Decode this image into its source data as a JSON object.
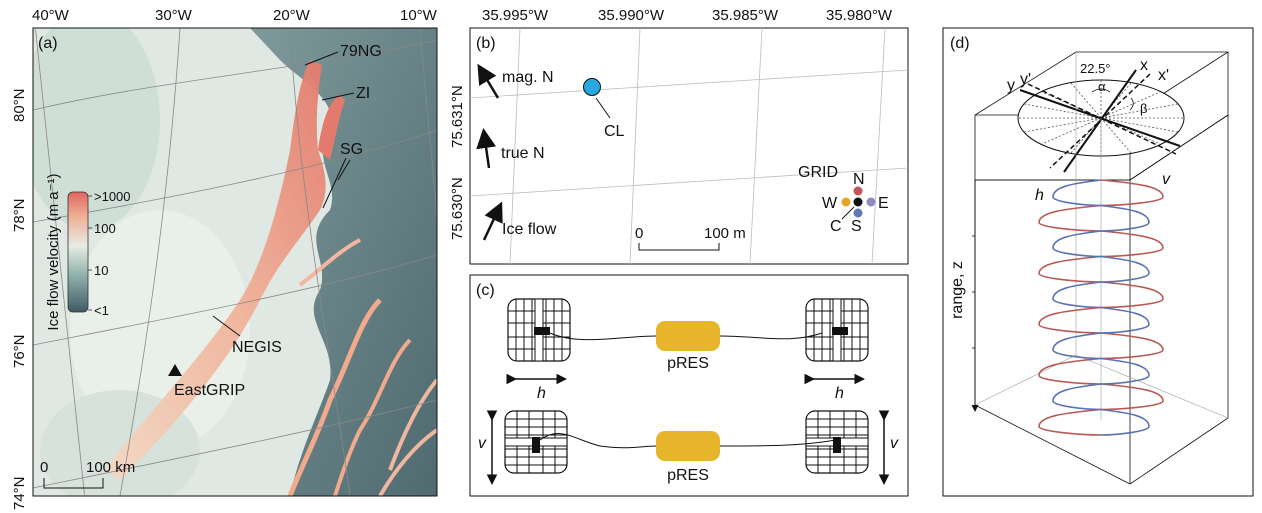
{
  "panel_a": {
    "label": "(a)",
    "lon_ticks": [
      "40°W",
      "30°W",
      "20°W",
      "10°W"
    ],
    "lat_ticks": [
      "80°N",
      "78°N",
      "76°N",
      "74°N"
    ],
    "places": {
      "ng79": "79NG",
      "zi": "ZI",
      "sg": "SG",
      "negis": "NEGIS",
      "eastgrip": "EastGRIP"
    },
    "colorbar": {
      "title": "Ice flow velocity (m a⁻¹)",
      "ticks": [
        ">1000",
        "100",
        "10",
        "<1"
      ]
    },
    "scale": {
      "zero": "0",
      "end": "100 km"
    }
  },
  "panel_b": {
    "label": "(b)",
    "lon_ticks": [
      "35.995°W",
      "35.990°W",
      "35.985°W",
      "35.980°W"
    ],
    "lat_ticks": [
      "75.631°N",
      "75.630°N"
    ],
    "arrows": {
      "mag": "mag. N",
      "true": "true N",
      "flow": "Ice flow"
    },
    "site": "CL",
    "grid": {
      "title": "GRID",
      "n": "N",
      "s": "S",
      "e": "E",
      "w": "W",
      "c": "C"
    },
    "scale": {
      "zero": "0",
      "end": "100 m"
    }
  },
  "panel_c": {
    "label": "(c)",
    "device": "pRES",
    "h": "h",
    "v": "v"
  },
  "panel_d": {
    "label": "(d)",
    "axis_label": "range, z",
    "angle": "22.5°",
    "x": "x",
    "xp": "x'",
    "y": "y",
    "yp": "y'",
    "alpha": "α",
    "beta": "β",
    "h": "h",
    "v": "v"
  },
  "colors": {
    "cl": "#29a8e0",
    "pres": "#e6b52c",
    "grid_n": "#c2545a",
    "grid_e": "#8d8ac0",
    "grid_s": "#5e79b5",
    "grid_w": "#e2a529",
    "h_curve": "#5a72b0",
    "v_curve": "#b75a56"
  }
}
